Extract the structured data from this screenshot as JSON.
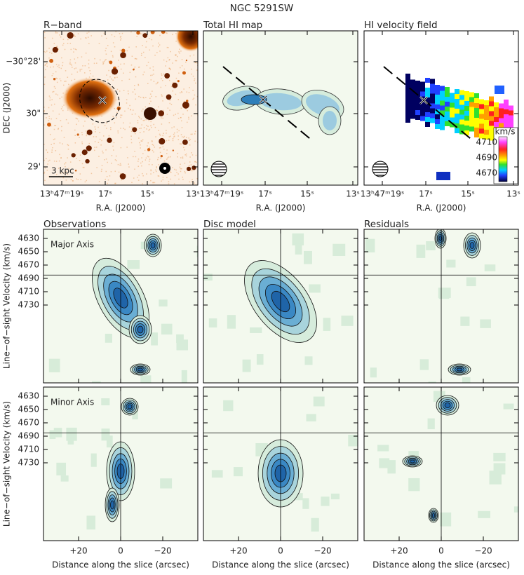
{
  "title": "NGC 5291SW",
  "top_row": {
    "panels": [
      {
        "title": "R−band"
      },
      {
        "title": "Total HI map"
      },
      {
        "title": "HI velocity field"
      }
    ],
    "y_axis_label": "DEC (J2000)",
    "y_ticks": [
      "−30°28'",
      "30\"",
      "29'"
    ],
    "x_axis_label": "R.A. (J2000)",
    "x_ticks": [
      "13ʰ47ᵐ19ˢ",
      "17ˢ",
      "15ˢ",
      "13ˢ"
    ],
    "scale_bar": "3 kpc",
    "colorbar": {
      "unit": "km/s",
      "ticks": [
        4710,
        4690,
        4670
      ]
    }
  },
  "pv_diagrams": {
    "columns": [
      {
        "title": "Observations"
      },
      {
        "title": "Disc model"
      },
      {
        "title": "Residuals"
      }
    ],
    "rows": [
      {
        "label": "Major Axis"
      },
      {
        "label": "Minor Axis"
      }
    ],
    "y_axis_label": "Line−of−sight Velocity (km/s)",
    "y_ticks": [
      4630,
      4650,
      4670,
      4690,
      4710,
      4730
    ],
    "x_ticks": [
      "+20",
      "0",
      "−20"
    ],
    "x_axis_label": "Distance along the slice (arcsec)"
  }
}
